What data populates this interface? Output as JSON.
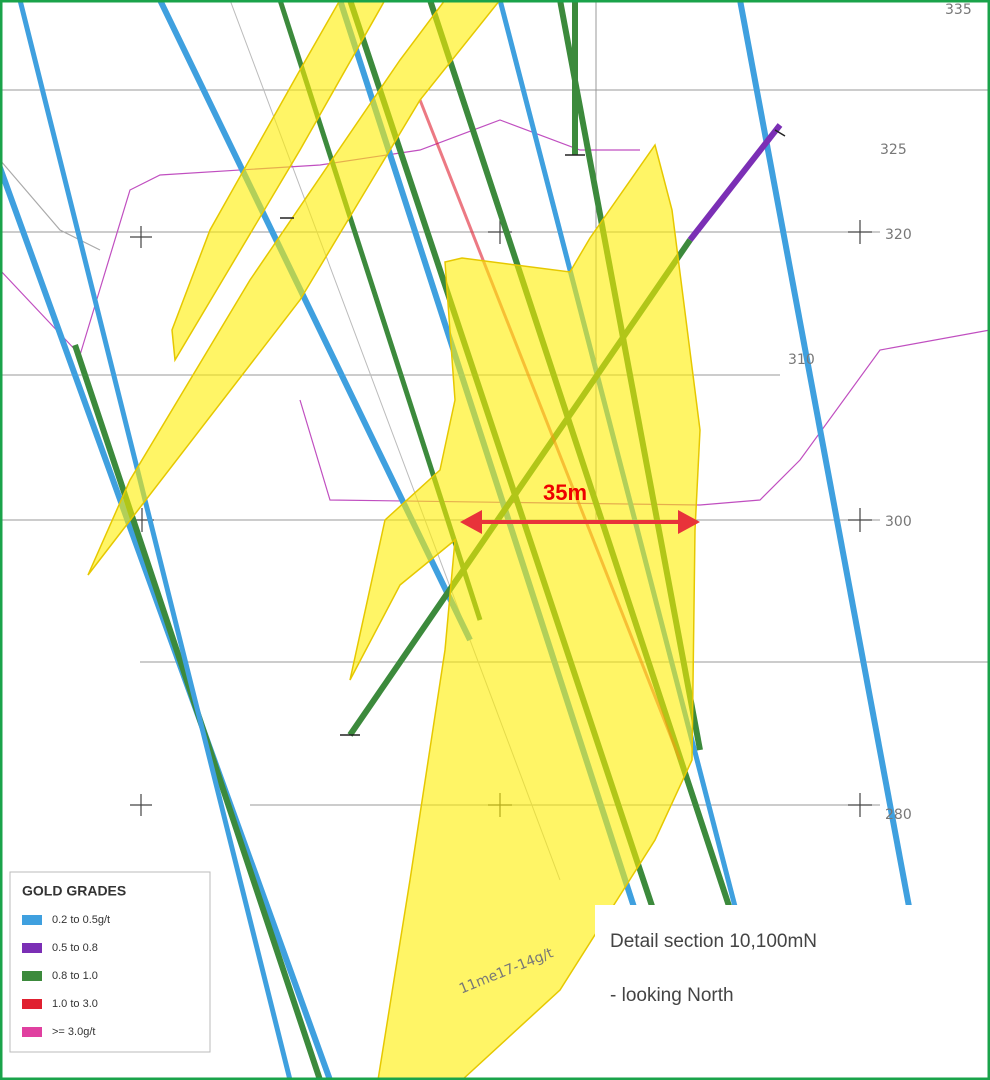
{
  "section": {
    "annotation": "35m",
    "elevations": [
      "335",
      "325",
      "320",
      "310",
      "300",
      "280"
    ],
    "handwritten_note": "11me17-14g/t",
    "caption": [
      "Detail section 10,100mN",
      "- looking North"
    ]
  },
  "legend": {
    "title": "GOLD GRADES",
    "items": [
      {
        "label": "0.2 to 0.5g/t",
        "color": "#3fa0df"
      },
      {
        "label": "0.5 to 0.8",
        "color": "#7b2fb5"
      },
      {
        "label": "0.8 to 1.0",
        "color": "#3c8a3c"
      },
      {
        "label": "1.0 to 3.0",
        "color": "#e02030"
      },
      {
        "label": ">= 3.0g/t",
        "color": "#e040a0"
      }
    ]
  }
}
